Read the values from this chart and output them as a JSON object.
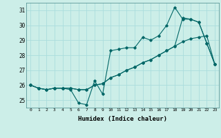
{
  "title": "",
  "xlabel": "Humidex (Indice chaleur)",
  "ylabel": "",
  "background_color": "#cceee8",
  "grid_color": "#aadddd",
  "line_color": "#006666",
  "xlim": [
    -0.5,
    23.5
  ],
  "ylim": [
    24.5,
    31.5
  ],
  "yticks": [
    25,
    26,
    27,
    28,
    29,
    30,
    31
  ],
  "xticks": [
    0,
    1,
    2,
    3,
    4,
    5,
    6,
    7,
    8,
    9,
    10,
    11,
    12,
    13,
    14,
    15,
    16,
    17,
    18,
    19,
    20,
    21,
    22,
    23
  ],
  "series1": [
    26.0,
    25.8,
    25.7,
    25.8,
    25.8,
    25.7,
    24.8,
    24.7,
    26.3,
    25.4,
    28.3,
    28.4,
    28.5,
    28.5,
    29.2,
    29.0,
    29.3,
    30.0,
    31.2,
    30.4,
    30.4,
    30.2,
    28.8,
    27.4
  ],
  "series2": [
    26.0,
    25.8,
    25.7,
    25.8,
    25.8,
    25.8,
    25.7,
    25.7,
    26.0,
    26.1,
    26.5,
    26.7,
    27.0,
    27.2,
    27.5,
    27.7,
    28.0,
    28.3,
    28.6,
    28.9,
    29.1,
    29.2,
    29.3,
    27.4
  ],
  "series3": [
    26.0,
    25.8,
    25.7,
    25.8,
    25.8,
    25.8,
    25.7,
    25.7,
    26.0,
    26.1,
    26.5,
    26.7,
    27.0,
    27.2,
    27.5,
    27.7,
    28.0,
    28.3,
    28.6,
    30.5,
    30.4,
    30.2,
    28.8,
    27.4
  ]
}
